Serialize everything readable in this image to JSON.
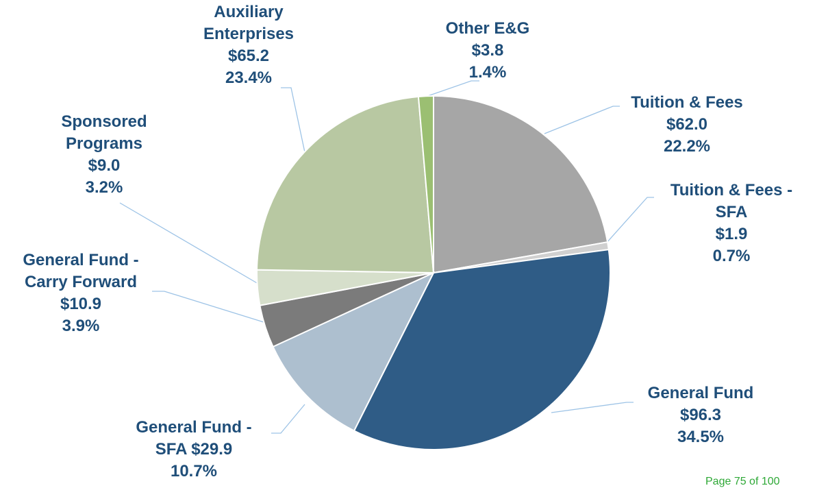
{
  "chart_data": {
    "type": "pie",
    "categories": [
      "Tuition & Fees",
      "Tuition & Fees - SFA",
      "General Fund",
      "General Fund - SFA",
      "General Fund - Carry Forward",
      "Sponsored Programs",
      "Auxiliary Enterprises",
      "Other E&G"
    ],
    "values": [
      62.0,
      1.9,
      96.3,
      29.9,
      10.9,
      9.0,
      65.2,
      3.8
    ],
    "value_labels": [
      "$62.0",
      "$1.9",
      "$96.3",
      "$29.9",
      "$10.9",
      "$9.0",
      "$65.2",
      "$3.8"
    ],
    "percents": [
      22.2,
      0.7,
      34.5,
      10.7,
      3.9,
      3.2,
      23.4,
      1.4
    ],
    "percent_labels": [
      "22.2%",
      "0.7%",
      "34.5%",
      "10.7%",
      "3.9%",
      "3.2%",
      "23.4%",
      "1.4%"
    ],
    "colors": [
      "#a6a6a6",
      "#d0d0d0",
      "#2f5c86",
      "#adbfcf",
      "#7b7b7b",
      "#d6dfcb",
      "#b8c8a2",
      "#9bbf72"
    ],
    "footer": "Page 75 of 100"
  }
}
